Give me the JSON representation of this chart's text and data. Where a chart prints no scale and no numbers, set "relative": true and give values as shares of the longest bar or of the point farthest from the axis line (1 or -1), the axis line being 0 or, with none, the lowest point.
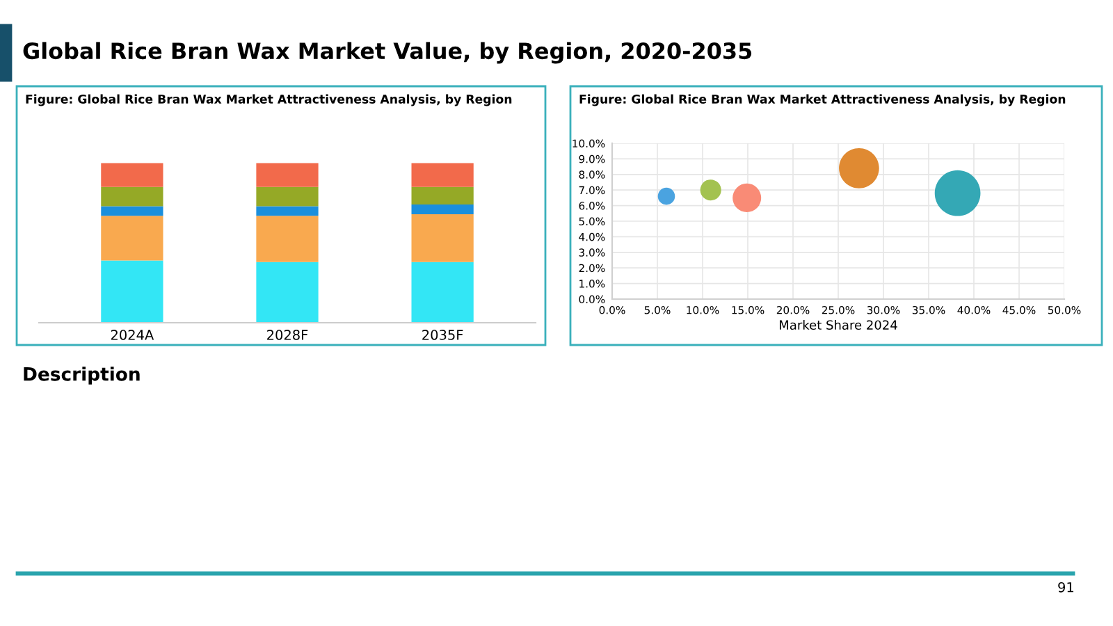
{
  "chart_data": [
    {
      "type": "other",
      "title": "Global Rice Bran Wax Market Value, by Region, 2020-2035",
      "annotations": [
        "Description",
        "91"
      ]
    },
    {
      "type": "bar",
      "title": "Figure: Global Rice Bran Wax Market Attractiveness Analysis, by Region",
      "categories": [
        "2024A",
        "2028F",
        "2035F"
      ],
      "stacked": true,
      "relative": true,
      "series": [
        {
          "color": "#33e6f5",
          "values": [
            0.39,
            0.38,
            0.38
          ]
        },
        {
          "color": "#f9a94f",
          "values": [
            0.28,
            0.29,
            0.3
          ]
        },
        {
          "color": "#1b8fdc",
          "values": [
            0.06,
            0.06,
            0.06
          ]
        },
        {
          "color": "#95a926",
          "values": [
            0.12,
            0.12,
            0.11
          ]
        },
        {
          "color": "#f26a4b",
          "values": [
            0.15,
            0.15,
            0.15
          ]
        }
      ]
    },
    {
      "type": "bubble",
      "title": "Figure: Global Rice Bran Wax Market Attractiveness Analysis, by Region",
      "xlabel": "Market Share 2024",
      "x": [
        6.0,
        10.9,
        14.9,
        27.3,
        38.2
      ],
      "values": [
        6.6,
        7.0,
        6.5,
        8.4,
        6.8
      ],
      "sizes": [
        0.14,
        0.21,
        0.39,
        0.77,
        1
      ],
      "colors": [
        "#4aa3e0",
        "#a3c250",
        "#f98b76",
        "#e08a32",
        "#34a8b5"
      ],
      "xlim": [
        0,
        50
      ],
      "ylim": [
        0,
        10
      ],
      "grid": true,
      "xticks": [
        {
          "value": 0,
          "label": "0.0%"
        },
        {
          "value": 5,
          "label": "5.0%"
        },
        {
          "value": 10,
          "label": "10.0%"
        },
        {
          "value": 15,
          "label": "15.0%"
        },
        {
          "value": 20,
          "label": "20.0%"
        },
        {
          "value": 25,
          "label": "25.0%"
        },
        {
          "value": 30,
          "label": "30.0%"
        },
        {
          "value": 35,
          "label": "35.0%"
        },
        {
          "value": 40,
          "label": "40.0%"
        },
        {
          "value": 45,
          "label": "45.0%"
        },
        {
          "value": 50,
          "label": "50.0%"
        }
      ],
      "yticks": [
        {
          "value": 0,
          "label": "0.0%"
        },
        {
          "value": 1,
          "label": "1.0%"
        },
        {
          "value": 2,
          "label": "2.0%"
        },
        {
          "value": 3,
          "label": "3.0%"
        },
        {
          "value": 4,
          "label": "4.0%"
        },
        {
          "value": 5,
          "label": "5.0%"
        },
        {
          "value": 6,
          "label": "6.0%"
        },
        {
          "value": 7,
          "label": "7.0%"
        },
        {
          "value": 8,
          "label": "8.0%"
        },
        {
          "value": 9,
          "label": "9.0%"
        },
        {
          "value": 10,
          "label": "10.0%"
        }
      ]
    }
  ]
}
